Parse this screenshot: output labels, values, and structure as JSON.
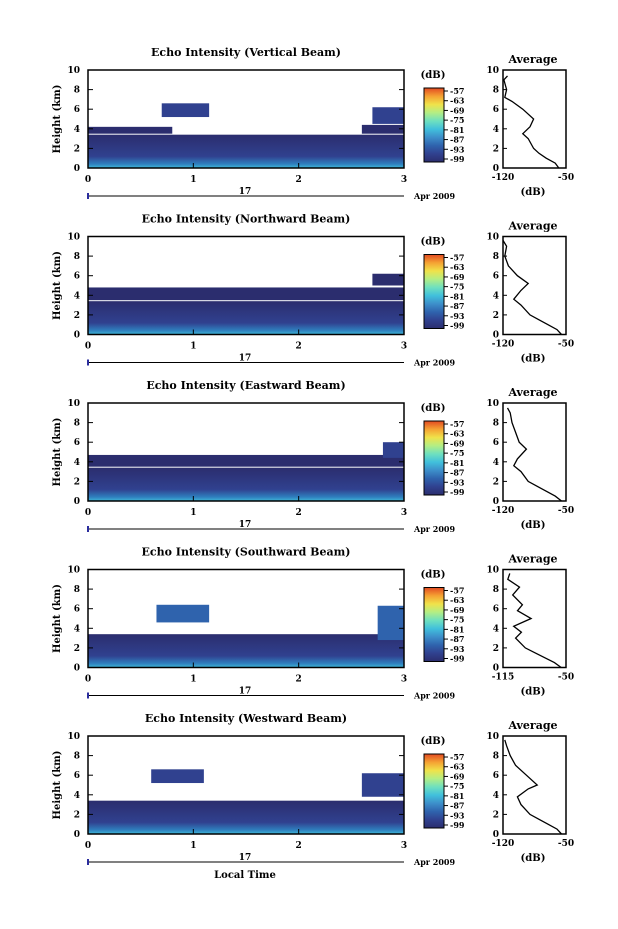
{
  "figure": {
    "xlabel": "Local Time",
    "ylabel": "Height (km)",
    "date_day": "17",
    "date_month": "Apr 2009",
    "colorbar_unit": "(dB)",
    "colorbar_ticks": [
      "-57",
      "-63",
      "-69",
      "-75",
      "-81",
      "-87",
      "-93",
      "-99"
    ],
    "colormap": [
      "#2b2d6e",
      "#30418f",
      "#2f63ad",
      "#3d8fca",
      "#41c0dc",
      "#6fe0bf",
      "#b4ee84",
      "#f0e24a",
      "#f5a233",
      "#e24a22"
    ],
    "avg_title": "Average",
    "avg_xlabel": "(dB)"
  },
  "chart_data": [
    {
      "type": "heatmap",
      "title": "Echo Intensity (Vertical Beam)",
      "xlim": [
        0,
        3
      ],
      "ylim": [
        0,
        10
      ],
      "xticks": [
        "0",
        "1",
        "2",
        "3"
      ],
      "yticks": [
        "0",
        "2",
        "4",
        "6",
        "8",
        "10"
      ],
      "layers": [
        {
          "h0": 0,
          "h1": 3.4,
          "t0": 0,
          "t1": 3,
          "level": 0.15
        },
        {
          "h0": 3.5,
          "h1": 4.2,
          "t0": 0,
          "t1": 0.8,
          "level": 0.05
        },
        {
          "h0": 5.2,
          "h1": 6.6,
          "t0": 0.7,
          "t1": 1.15,
          "level": 0.1
        },
        {
          "h0": 4.5,
          "h1": 6.2,
          "t0": 2.7,
          "t1": 3,
          "level": 0.12
        },
        {
          "h0": 3.5,
          "h1": 4.4,
          "t0": 2.6,
          "t1": 3,
          "level": 0.05
        }
      ],
      "average": {
        "xlim": [
          -120,
          -50
        ],
        "xticks": [
          "-120",
          "-50"
        ],
        "profile": [
          [
            -58,
            0
          ],
          [
            -62,
            0.5
          ],
          [
            -72,
            1
          ],
          [
            -80,
            1.5
          ],
          [
            -86,
            2
          ],
          [
            -92,
            3
          ],
          [
            -98,
            3.5
          ],
          [
            -90,
            4.2
          ],
          [
            -86,
            5
          ],
          [
            -98,
            6
          ],
          [
            -110,
            6.8
          ],
          [
            -118,
            7.2
          ],
          [
            -116,
            8
          ],
          [
            -119,
            9
          ],
          [
            -115,
            9.4
          ]
        ]
      }
    },
    {
      "type": "heatmap",
      "title": "Echo Intensity (Northward Beam)",
      "xlim": [
        0,
        3
      ],
      "ylim": [
        0,
        10
      ],
      "xticks": [
        "0",
        "1",
        "2",
        "3"
      ],
      "yticks": [
        "0",
        "2",
        "4",
        "6",
        "8",
        "10"
      ],
      "layers": [
        {
          "h0": 0,
          "h1": 3.4,
          "t0": 0,
          "t1": 3,
          "level": 0.15
        },
        {
          "h0": 3.5,
          "h1": 4.8,
          "t0": 0,
          "t1": 3,
          "level": 0.03
        },
        {
          "h0": 5.0,
          "h1": 6.2,
          "t0": 2.7,
          "t1": 3,
          "level": 0.05
        }
      ],
      "average": {
        "xlim": [
          -120,
          -50
        ],
        "xticks": [
          "-120",
          "-50"
        ],
        "profile": [
          [
            -55,
            0
          ],
          [
            -60,
            0.5
          ],
          [
            -70,
            1
          ],
          [
            -80,
            1.5
          ],
          [
            -90,
            2
          ],
          [
            -100,
            3
          ],
          [
            -108,
            3.6
          ],
          [
            -100,
            4.5
          ],
          [
            -92,
            5.2
          ],
          [
            -104,
            6
          ],
          [
            -114,
            7
          ],
          [
            -118,
            8
          ],
          [
            -116,
            9
          ],
          [
            -120,
            9.6
          ]
        ]
      }
    },
    {
      "type": "heatmap",
      "title": "Echo Intensity (Eastward Beam)",
      "xlim": [
        0,
        3
      ],
      "ylim": [
        0,
        10
      ],
      "xticks": [
        "0",
        "1",
        "2",
        "3"
      ],
      "yticks": [
        "0",
        "2",
        "4",
        "6",
        "8",
        "10"
      ],
      "layers": [
        {
          "h0": 0,
          "h1": 3.4,
          "t0": 0,
          "t1": 3,
          "level": 0.15
        },
        {
          "h0": 3.5,
          "h1": 4.7,
          "t0": 0,
          "t1": 3,
          "level": 0.04
        },
        {
          "h0": 4.4,
          "h1": 6.0,
          "t0": 2.8,
          "t1": 3,
          "level": 0.08
        }
      ],
      "average": {
        "xlim": [
          -120,
          -50
        ],
        "xticks": [
          "-120",
          "-50"
        ],
        "profile": [
          [
            -55,
            0
          ],
          [
            -62,
            0.5
          ],
          [
            -72,
            1
          ],
          [
            -82,
            1.5
          ],
          [
            -92,
            2
          ],
          [
            -100,
            3
          ],
          [
            -108,
            3.6
          ],
          [
            -104,
            4.3
          ],
          [
            -94,
            5.3
          ],
          [
            -102,
            6
          ],
          [
            -106,
            7
          ],
          [
            -110,
            8
          ],
          [
            -112,
            9
          ],
          [
            -115,
            9.5
          ]
        ]
      }
    },
    {
      "type": "heatmap",
      "title": "Echo Intensity (Southward Beam)",
      "xlim": [
        0,
        3
      ],
      "ylim": [
        0,
        10
      ],
      "xticks": [
        "0",
        "1",
        "2",
        "3"
      ],
      "yticks": [
        "0",
        "2",
        "4",
        "6",
        "8",
        "10"
      ],
      "layers": [
        {
          "h0": 0,
          "h1": 3.4,
          "t0": 0,
          "t1": 3,
          "level": 0.18
        },
        {
          "h0": 4.6,
          "h1": 6.4,
          "t0": 0.65,
          "t1": 1.15,
          "level": 0.2
        },
        {
          "h0": 2.8,
          "h1": 6.3,
          "t0": 2.75,
          "t1": 3,
          "level": 0.25
        }
      ],
      "average": {
        "xlim": [
          -115,
          -50
        ],
        "xticks": [
          "-115",
          "-50"
        ],
        "profile": [
          [
            -55,
            0
          ],
          [
            -62,
            0.5
          ],
          [
            -72,
            1
          ],
          [
            -82,
            1.5
          ],
          [
            -92,
            2
          ],
          [
            -102,
            3
          ],
          [
            -96,
            3.6
          ],
          [
            -104,
            4.2
          ],
          [
            -86,
            5
          ],
          [
            -100,
            5.8
          ],
          [
            -95,
            6.4
          ],
          [
            -105,
            7.4
          ],
          [
            -98,
            8.2
          ],
          [
            -110,
            9
          ],
          [
            -108,
            9.6
          ]
        ]
      }
    },
    {
      "type": "heatmap",
      "title": "Echo Intensity (Westward Beam)",
      "xlim": [
        0,
        3
      ],
      "ylim": [
        0,
        10
      ],
      "xticks": [
        "0",
        "1",
        "2",
        "3"
      ],
      "yticks": [
        "0",
        "2",
        "4",
        "6",
        "8",
        "10"
      ],
      "layers": [
        {
          "h0": 0,
          "h1": 3.4,
          "t0": 0,
          "t1": 3,
          "level": 0.18
        },
        {
          "h0": 5.2,
          "h1": 6.6,
          "t0": 0.6,
          "t1": 1.1,
          "level": 0.15
        },
        {
          "h0": 3.8,
          "h1": 6.2,
          "t0": 2.6,
          "t1": 3,
          "level": 0.12
        }
      ],
      "average": {
        "xlim": [
          -120,
          -50
        ],
        "xticks": [
          "-120",
          "-50"
        ],
        "profile": [
          [
            -55,
            0
          ],
          [
            -60,
            0.5
          ],
          [
            -70,
            1
          ],
          [
            -80,
            1.5
          ],
          [
            -90,
            2
          ],
          [
            -100,
            3
          ],
          [
            -104,
            3.8
          ],
          [
            -92,
            4.6
          ],
          [
            -82,
            5
          ],
          [
            -94,
            6
          ],
          [
            -106,
            7
          ],
          [
            -112,
            8
          ],
          [
            -116,
            9
          ],
          [
            -118,
            9.6
          ]
        ]
      }
    }
  ]
}
